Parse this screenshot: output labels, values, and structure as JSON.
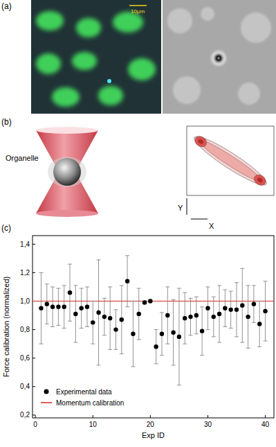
{
  "panels": {
    "a": {
      "label": "(a)",
      "scale_bar": "10μm"
    },
    "b": {
      "label": "(b)",
      "object_label": "Organelle",
      "x_label": "X",
      "y_label": "Y"
    },
    "c": {
      "label": "(c)"
    }
  },
  "chart_data": {
    "type": "scatter",
    "x_label": "Exp ID",
    "y_label": "Force calibration (normalized)",
    "xlim": [
      -0.5,
      41.5
    ],
    "ylim": [
      0.18,
      1.46
    ],
    "xticks": [
      0,
      10,
      20,
      30,
      40
    ],
    "yticks": [
      {
        "value": 0.2,
        "label": "0,2"
      },
      {
        "value": 0.4,
        "label": "0,4"
      },
      {
        "value": 0.6,
        "label": "0,6"
      },
      {
        "value": 0.8,
        "label": "0,8"
      },
      {
        "value": 1.0,
        "label": "1,0"
      },
      {
        "value": 1.2,
        "label": "1,2"
      },
      {
        "value": 1.4,
        "label": "1,4"
      }
    ],
    "legend": "lower left",
    "grid": false,
    "series": [
      {
        "name": "Experimental data",
        "type": "scatter",
        "color": "#000000",
        "marker": "circle",
        "x": [
          1,
          2,
          3,
          4,
          5,
          6,
          7,
          8,
          9,
          10,
          11,
          12,
          13,
          14,
          15,
          16,
          17,
          18,
          19,
          20,
          21,
          22,
          23,
          24,
          25,
          26,
          27,
          28,
          29,
          30,
          31,
          32,
          33,
          34,
          35,
          36,
          37,
          38,
          39,
          40
        ],
        "values": [
          0.95,
          0.98,
          0.96,
          0.96,
          0.96,
          1.06,
          0.91,
          0.95,
          0.96,
          0.85,
          0.92,
          0.89,
          0.88,
          0.8,
          0.87,
          1.14,
          0.77,
          0.91,
          0.99,
          1.0,
          0.68,
          0.77,
          0.9,
          0.78,
          0.75,
          0.88,
          0.89,
          0.9,
          0.79,
          0.95,
          0.89,
          0.91,
          0.95,
          0.94,
          0.94,
          0.97,
          0.89,
          0.98,
          0.84,
          0.93
        ],
        "errors": [
          0.25,
          0.14,
          0.14,
          0.13,
          0.15,
          0.2,
          0.2,
          0.14,
          0.14,
          0.15,
          0.37,
          0.13,
          0.22,
          0.14,
          0.24,
          0.18,
          0.23,
          0.18,
          0.01,
          0.01,
          0.12,
          0.15,
          0.2,
          0.23,
          0.34,
          0.18,
          0.13,
          0.13,
          0.17,
          0.15,
          0.14,
          0.2,
          0.13,
          0.13,
          0.19,
          0.26,
          0.22,
          0.13,
          0.16,
          0.21
        ]
      },
      {
        "name": "Momentum calibration",
        "type": "line",
        "color": "#d62728",
        "line_style": "solid",
        "x": [
          -0.5,
          41.5
        ],
        "values": [
          1.0,
          1.0
        ]
      }
    ]
  }
}
